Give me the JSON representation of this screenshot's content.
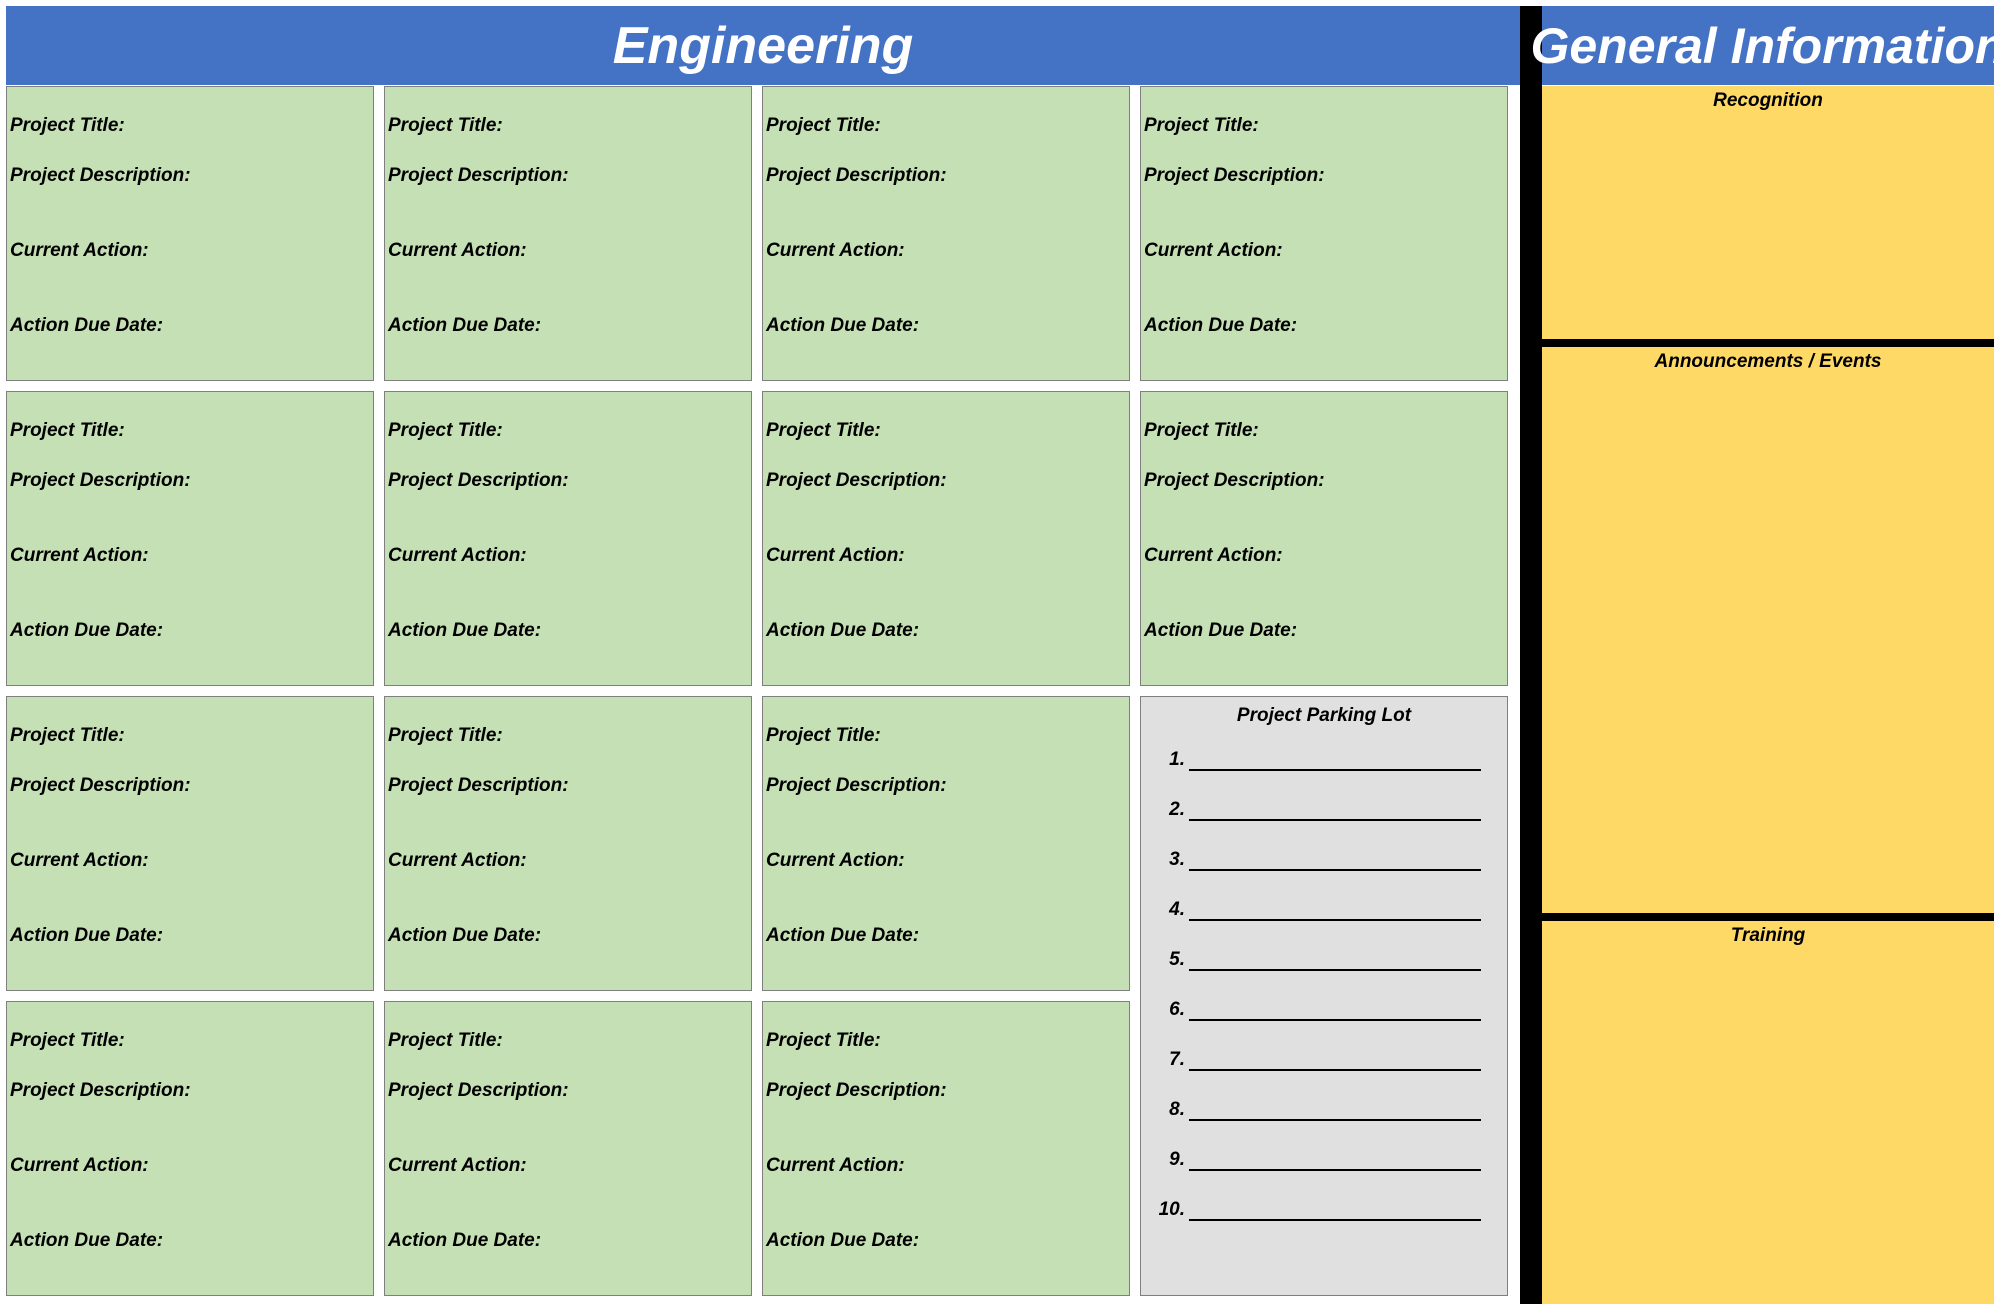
{
  "headers": {
    "engineering": "Engineering",
    "general": "General Information"
  },
  "card_labels": {
    "title": "Project Title:",
    "description": "Project Description:",
    "action": "Current Action:",
    "due": "Action Due Date:"
  },
  "parking_lot": {
    "title": "Project Parking Lot",
    "items": [
      "1.",
      "2.",
      "3.",
      "4.",
      "5.",
      "6.",
      "7.",
      "8.",
      "9.",
      "10."
    ]
  },
  "general_sections": {
    "recognition": "Recognition",
    "announcements": "Announcements / Events",
    "training": "Training"
  },
  "colors": {
    "header_blue": "#4472c4",
    "card_green": "#c5e0b4",
    "parking_gray": "#e0e0e0",
    "info_yellow": "#ffd966"
  }
}
